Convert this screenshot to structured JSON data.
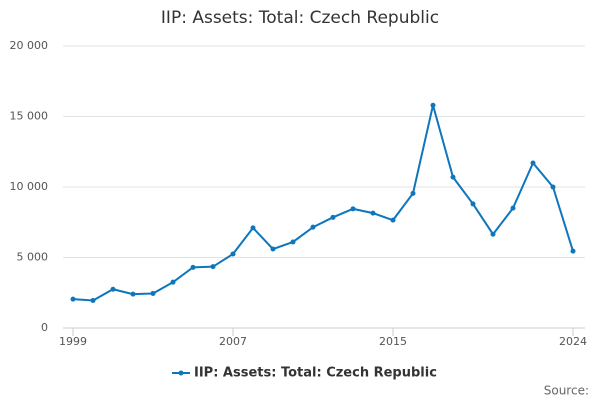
{
  "chart_data": {
    "type": "line",
    "title": "IIP: Assets: Total: Czech Republic",
    "x": [
      1999,
      2000,
      2001,
      2002,
      2003,
      2004,
      2005,
      2006,
      2007,
      2008,
      2009,
      2010,
      2011,
      2012,
      2013,
      2014,
      2015,
      2016,
      2017,
      2018,
      2019,
      2020,
      2021,
      2022,
      2023,
      2024
    ],
    "series": [
      {
        "name": "IIP: Assets: Total: Czech Republic",
        "color": "#0e76bc",
        "values": [
          2050,
          1950,
          2750,
          2400,
          2450,
          3250,
          4300,
          4350,
          5250,
          7100,
          5600,
          6100,
          7150,
          7850,
          8450,
          8150,
          7650,
          9550,
          15800,
          10700,
          8800,
          6650,
          8500,
          11700,
          10000,
          5450
        ]
      }
    ],
    "xlim": [
      1999,
      2024
    ],
    "xticks": [
      1999,
      2007,
      2015,
      2024
    ],
    "ylim": [
      0,
      20000
    ],
    "yticks": [
      0,
      {
        "value": 5000,
        "label": "5 000"
      },
      {
        "value": 10000,
        "label": "10 000"
      },
      {
        "value": 15000,
        "label": "15 000"
      },
      {
        "value": 20000,
        "label": "20 000"
      }
    ],
    "grid": true,
    "legend": "bottom",
    "source": "Source:"
  }
}
